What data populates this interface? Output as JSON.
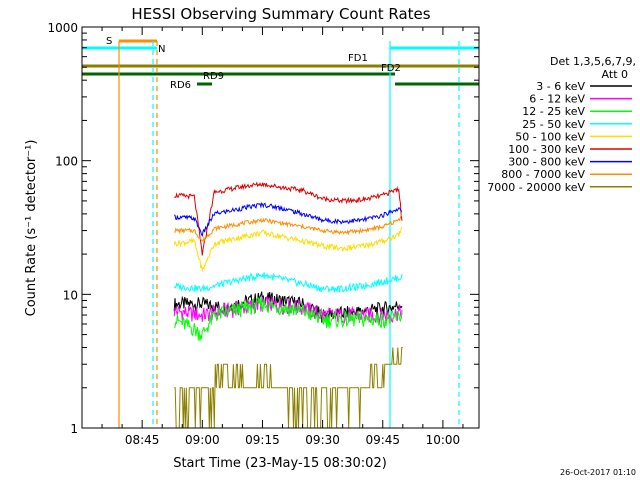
{
  "chart_data": {
    "type": "line",
    "title": "HESSI Observing Summary Count Rates",
    "xlabel": "Start Time (23-May-15 08:30:02)",
    "ylabel": "Count Rate (s⁻¹ detector⁻¹)",
    "x_ticks": [
      "08:45",
      "09:00",
      "09:15",
      "09:30",
      "09:45",
      "10:00"
    ],
    "y_ticks": [
      "1",
      "10",
      "100",
      "1000"
    ],
    "y_scale": "log",
    "ylim": [
      1,
      1000
    ],
    "xlim": [
      "08:30",
      "10:09"
    ],
    "grid": false,
    "legend_placement": "right",
    "legend_title": "Det 1,3,5,6,7,9,",
    "legend_subtitle": "Att 0",
    "timestamp": "26-Oct-2017 01:10",
    "series": [
      {
        "name": "3 - 6 keV",
        "color": "#000000",
        "data": [
          [
            "08:53",
            8.5
          ],
          [
            "09:00",
            8.5
          ],
          [
            "09:05",
            8
          ],
          [
            "09:15",
            9.5
          ],
          [
            "09:25",
            8.5
          ],
          [
            "09:30",
            7
          ],
          [
            "09:40",
            7.5
          ],
          [
            "09:47",
            8
          ],
          [
            "09:50",
            8.5
          ]
        ]
      },
      {
        "name": "6 - 12 keV",
        "color": "#ff00ff",
        "data": [
          [
            "08:53",
            7.5
          ],
          [
            "09:00",
            7
          ],
          [
            "09:05",
            7.5
          ],
          [
            "09:15",
            8.5
          ],
          [
            "09:25",
            8
          ],
          [
            "09:30",
            7
          ],
          [
            "09:40",
            7
          ],
          [
            "09:47",
            7
          ],
          [
            "09:50",
            7.5
          ]
        ]
      },
      {
        "name": "12 - 25 keV",
        "color": "#00ff00",
        "data": [
          [
            "08:53",
            6.5
          ],
          [
            "08:58",
            5.5
          ],
          [
            "09:00",
            5
          ],
          [
            "09:03",
            7
          ],
          [
            "09:15",
            8.5
          ],
          [
            "09:25",
            7.5
          ],
          [
            "09:30",
            6.5
          ],
          [
            "09:40",
            6.5
          ],
          [
            "09:47",
            6.5
          ],
          [
            "09:50",
            7
          ]
        ]
      },
      {
        "name": "25 - 50 keV",
        "color": "#00ffff",
        "data": [
          [
            "08:53",
            11.5
          ],
          [
            "09:00",
            11
          ],
          [
            "09:05",
            12
          ],
          [
            "09:10",
            13
          ],
          [
            "09:15",
            14
          ],
          [
            "09:20",
            13
          ],
          [
            "09:25",
            12
          ],
          [
            "09:30",
            11
          ],
          [
            "09:35",
            11
          ],
          [
            "09:40",
            11.5
          ],
          [
            "09:45",
            12.5
          ],
          [
            "09:50",
            13.5
          ]
        ]
      },
      {
        "name": "50 - 100 keV",
        "color": "#ffdd00",
        "data": [
          [
            "08:53",
            24
          ],
          [
            "08:58",
            25
          ],
          [
            "09:00",
            15
          ],
          [
            "09:03",
            24
          ],
          [
            "09:10",
            27
          ],
          [
            "09:15",
            29
          ],
          [
            "09:20",
            27
          ],
          [
            "09:25",
            25
          ],
          [
            "09:30",
            23
          ],
          [
            "09:35",
            22
          ],
          [
            "09:40",
            23
          ],
          [
            "09:45",
            25
          ],
          [
            "09:49",
            28
          ],
          [
            "09:50",
            33
          ]
        ]
      },
      {
        "name": "100 - 300 keV",
        "color": "#e00000",
        "data": [
          [
            "08:53",
            55
          ],
          [
            "08:58",
            54
          ],
          [
            "09:00",
            20
          ],
          [
            "09:03",
            58
          ],
          [
            "09:10",
            64
          ],
          [
            "09:15",
            67
          ],
          [
            "09:20",
            63
          ],
          [
            "09:25",
            60
          ],
          [
            "09:30",
            52
          ],
          [
            "09:35",
            50
          ],
          [
            "09:40",
            51
          ],
          [
            "09:45",
            55
          ],
          [
            "09:49",
            62
          ],
          [
            "09:50",
            30
          ]
        ]
      },
      {
        "name": "300 - 800 keV",
        "color": "#0000ff",
        "data": [
          [
            "08:53",
            38
          ],
          [
            "08:58",
            37
          ],
          [
            "09:00",
            28
          ],
          [
            "09:03",
            40
          ],
          [
            "09:10",
            44
          ],
          [
            "09:15",
            47
          ],
          [
            "09:20",
            44
          ],
          [
            "09:25",
            40
          ],
          [
            "09:30",
            36
          ],
          [
            "09:35",
            35
          ],
          [
            "09:40",
            36
          ],
          [
            "09:45",
            39
          ],
          [
            "09:49",
            44
          ],
          [
            "09:50",
            40
          ]
        ]
      },
      {
        "name": "800 - 7000 keV",
        "color": "#ff8c00",
        "data": [
          [
            "08:53",
            30
          ],
          [
            "08:58",
            30
          ],
          [
            "09:00",
            25
          ],
          [
            "09:03",
            31
          ],
          [
            "09:10",
            34
          ],
          [
            "09:15",
            36
          ],
          [
            "09:20",
            34
          ],
          [
            "09:25",
            32
          ],
          [
            "09:30",
            30
          ],
          [
            "09:35",
            29
          ],
          [
            "09:40",
            30
          ],
          [
            "09:45",
            32
          ],
          [
            "09:49",
            36
          ],
          [
            "09:50",
            42
          ]
        ]
      },
      {
        "name": "7000 - 20000 keV",
        "color": "#8b8000",
        "data": [
          [
            "08:53",
            1.7
          ],
          [
            "09:00",
            1.6
          ],
          [
            "09:05",
            2.3
          ],
          [
            "09:15",
            2.3
          ],
          [
            "09:25",
            1.6
          ],
          [
            "09:30",
            1.6
          ],
          [
            "09:40",
            2
          ],
          [
            "09:47",
            3
          ],
          [
            "09:50",
            3.5
          ]
        ]
      }
    ],
    "annotations": [
      {
        "label": "S",
        "color": "#ff8c00"
      },
      {
        "label": "N",
        "color": "#00ffff"
      },
      {
        "label": "FD1",
        "color": "#8b8000"
      },
      {
        "label": "FD2",
        "color": "#8b8000"
      },
      {
        "label": "RD9",
        "color": "#006400"
      },
      {
        "label": "RD6",
        "color": "#006400"
      }
    ]
  }
}
